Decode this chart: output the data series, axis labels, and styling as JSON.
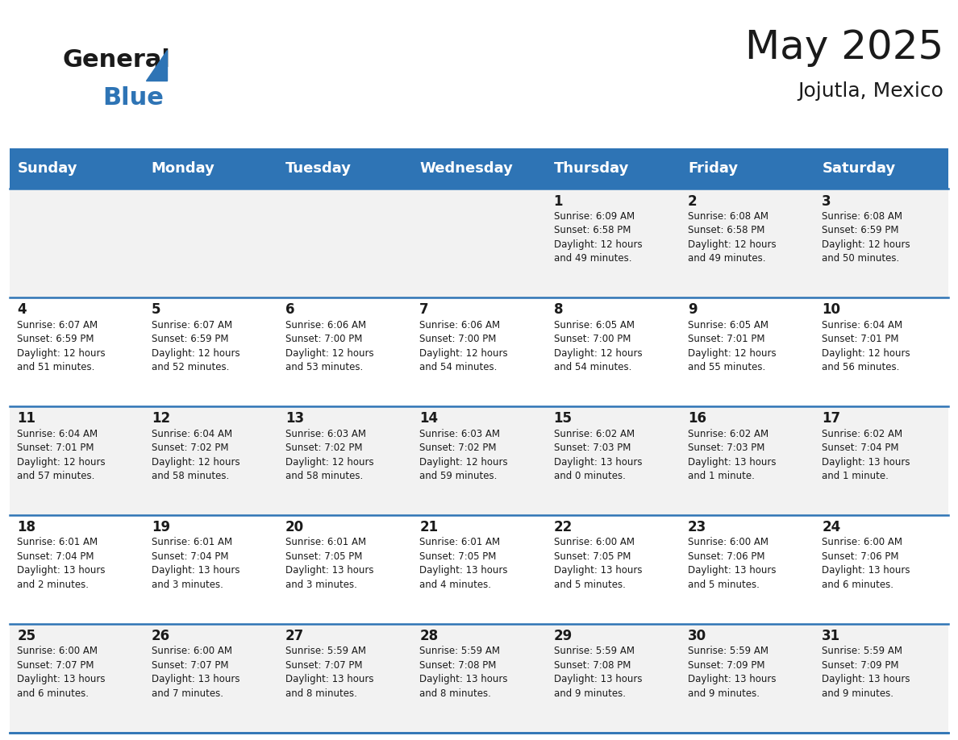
{
  "title": "May 2025",
  "subtitle": "Jojutla, Mexico",
  "header_bg": "#2E74B5",
  "header_text_color": "#FFFFFF",
  "cell_bg_even": "#F2F2F2",
  "cell_bg_odd": "#FFFFFF",
  "border_color": "#2E74B5",
  "day_names": [
    "Sunday",
    "Monday",
    "Tuesday",
    "Wednesday",
    "Thursday",
    "Friday",
    "Saturday"
  ],
  "days": [
    {
      "col": 0,
      "row": 0,
      "num": "",
      "info": ""
    },
    {
      "col": 1,
      "row": 0,
      "num": "",
      "info": ""
    },
    {
      "col": 2,
      "row": 0,
      "num": "",
      "info": ""
    },
    {
      "col": 3,
      "row": 0,
      "num": "",
      "info": ""
    },
    {
      "col": 4,
      "row": 0,
      "num": "1",
      "info": "Sunrise: 6:09 AM\nSunset: 6:58 PM\nDaylight: 12 hours\nand 49 minutes."
    },
    {
      "col": 5,
      "row": 0,
      "num": "2",
      "info": "Sunrise: 6:08 AM\nSunset: 6:58 PM\nDaylight: 12 hours\nand 49 minutes."
    },
    {
      "col": 6,
      "row": 0,
      "num": "3",
      "info": "Sunrise: 6:08 AM\nSunset: 6:59 PM\nDaylight: 12 hours\nand 50 minutes."
    },
    {
      "col": 0,
      "row": 1,
      "num": "4",
      "info": "Sunrise: 6:07 AM\nSunset: 6:59 PM\nDaylight: 12 hours\nand 51 minutes."
    },
    {
      "col": 1,
      "row": 1,
      "num": "5",
      "info": "Sunrise: 6:07 AM\nSunset: 6:59 PM\nDaylight: 12 hours\nand 52 minutes."
    },
    {
      "col": 2,
      "row": 1,
      "num": "6",
      "info": "Sunrise: 6:06 AM\nSunset: 7:00 PM\nDaylight: 12 hours\nand 53 minutes."
    },
    {
      "col": 3,
      "row": 1,
      "num": "7",
      "info": "Sunrise: 6:06 AM\nSunset: 7:00 PM\nDaylight: 12 hours\nand 54 minutes."
    },
    {
      "col": 4,
      "row": 1,
      "num": "8",
      "info": "Sunrise: 6:05 AM\nSunset: 7:00 PM\nDaylight: 12 hours\nand 54 minutes."
    },
    {
      "col": 5,
      "row": 1,
      "num": "9",
      "info": "Sunrise: 6:05 AM\nSunset: 7:01 PM\nDaylight: 12 hours\nand 55 minutes."
    },
    {
      "col": 6,
      "row": 1,
      "num": "10",
      "info": "Sunrise: 6:04 AM\nSunset: 7:01 PM\nDaylight: 12 hours\nand 56 minutes."
    },
    {
      "col": 0,
      "row": 2,
      "num": "11",
      "info": "Sunrise: 6:04 AM\nSunset: 7:01 PM\nDaylight: 12 hours\nand 57 minutes."
    },
    {
      "col": 1,
      "row": 2,
      "num": "12",
      "info": "Sunrise: 6:04 AM\nSunset: 7:02 PM\nDaylight: 12 hours\nand 58 minutes."
    },
    {
      "col": 2,
      "row": 2,
      "num": "13",
      "info": "Sunrise: 6:03 AM\nSunset: 7:02 PM\nDaylight: 12 hours\nand 58 minutes."
    },
    {
      "col": 3,
      "row": 2,
      "num": "14",
      "info": "Sunrise: 6:03 AM\nSunset: 7:02 PM\nDaylight: 12 hours\nand 59 minutes."
    },
    {
      "col": 4,
      "row": 2,
      "num": "15",
      "info": "Sunrise: 6:02 AM\nSunset: 7:03 PM\nDaylight: 13 hours\nand 0 minutes."
    },
    {
      "col": 5,
      "row": 2,
      "num": "16",
      "info": "Sunrise: 6:02 AM\nSunset: 7:03 PM\nDaylight: 13 hours\nand 1 minute."
    },
    {
      "col": 6,
      "row": 2,
      "num": "17",
      "info": "Sunrise: 6:02 AM\nSunset: 7:04 PM\nDaylight: 13 hours\nand 1 minute."
    },
    {
      "col": 0,
      "row": 3,
      "num": "18",
      "info": "Sunrise: 6:01 AM\nSunset: 7:04 PM\nDaylight: 13 hours\nand 2 minutes."
    },
    {
      "col": 1,
      "row": 3,
      "num": "19",
      "info": "Sunrise: 6:01 AM\nSunset: 7:04 PM\nDaylight: 13 hours\nand 3 minutes."
    },
    {
      "col": 2,
      "row": 3,
      "num": "20",
      "info": "Sunrise: 6:01 AM\nSunset: 7:05 PM\nDaylight: 13 hours\nand 3 minutes."
    },
    {
      "col": 3,
      "row": 3,
      "num": "21",
      "info": "Sunrise: 6:01 AM\nSunset: 7:05 PM\nDaylight: 13 hours\nand 4 minutes."
    },
    {
      "col": 4,
      "row": 3,
      "num": "22",
      "info": "Sunrise: 6:00 AM\nSunset: 7:05 PM\nDaylight: 13 hours\nand 5 minutes."
    },
    {
      "col": 5,
      "row": 3,
      "num": "23",
      "info": "Sunrise: 6:00 AM\nSunset: 7:06 PM\nDaylight: 13 hours\nand 5 minutes."
    },
    {
      "col": 6,
      "row": 3,
      "num": "24",
      "info": "Sunrise: 6:00 AM\nSunset: 7:06 PM\nDaylight: 13 hours\nand 6 minutes."
    },
    {
      "col": 0,
      "row": 4,
      "num": "25",
      "info": "Sunrise: 6:00 AM\nSunset: 7:07 PM\nDaylight: 13 hours\nand 6 minutes."
    },
    {
      "col": 1,
      "row": 4,
      "num": "26",
      "info": "Sunrise: 6:00 AM\nSunset: 7:07 PM\nDaylight: 13 hours\nand 7 minutes."
    },
    {
      "col": 2,
      "row": 4,
      "num": "27",
      "info": "Sunrise: 5:59 AM\nSunset: 7:07 PM\nDaylight: 13 hours\nand 8 minutes."
    },
    {
      "col": 3,
      "row": 4,
      "num": "28",
      "info": "Sunrise: 5:59 AM\nSunset: 7:08 PM\nDaylight: 13 hours\nand 8 minutes."
    },
    {
      "col": 4,
      "row": 4,
      "num": "29",
      "info": "Sunrise: 5:59 AM\nSunset: 7:08 PM\nDaylight: 13 hours\nand 9 minutes."
    },
    {
      "col": 5,
      "row": 4,
      "num": "30",
      "info": "Sunrise: 5:59 AM\nSunset: 7:09 PM\nDaylight: 13 hours\nand 9 minutes."
    },
    {
      "col": 6,
      "row": 4,
      "num": "31",
      "info": "Sunrise: 5:59 AM\nSunset: 7:09 PM\nDaylight: 13 hours\nand 9 minutes."
    }
  ],
  "num_rows": 5,
  "num_cols": 7,
  "logo_text_general": "General",
  "logo_text_blue": "Blue",
  "logo_color_general": "#1A1A1A",
  "logo_color_blue": "#2E74B5",
  "title_fontsize": 36,
  "subtitle_fontsize": 18,
  "header_fontsize": 13,
  "day_num_fontsize": 12,
  "info_fontsize": 8.5
}
